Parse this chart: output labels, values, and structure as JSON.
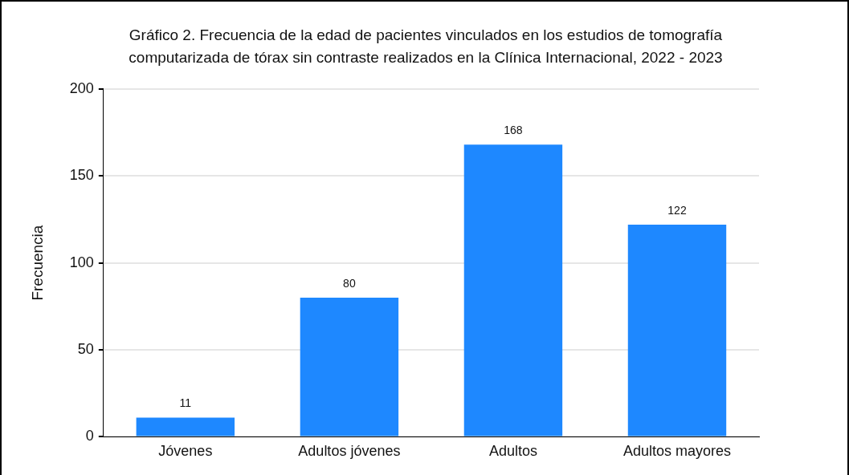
{
  "chart_data": {
    "type": "bar",
    "title": "Gráfico 2. Frecuencia de la edad de pacientes vinculados en los estudios de tomografía computarizada de tórax sin contraste realizados en la Clínica Internacional, 2022 - 2023",
    "ylabel": "Frecuencia",
    "categories": [
      "Jóvenes",
      "Adultos jóvenes",
      "Adultos",
      "Adultos mayores"
    ],
    "values": [
      11,
      80,
      168,
      122
    ],
    "color": "#1e88ff",
    "ylim": [
      0,
      200
    ],
    "yticks": [
      0,
      50,
      100,
      150,
      200
    ],
    "grid": "y",
    "data_labels": true
  }
}
